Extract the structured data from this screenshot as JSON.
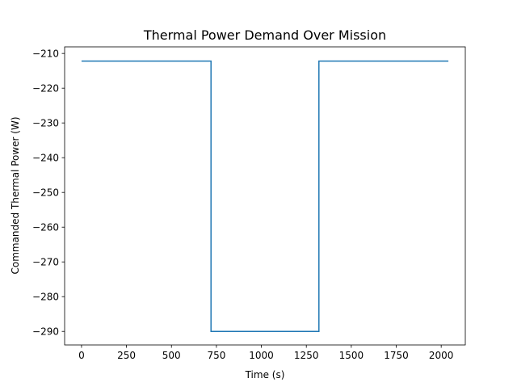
{
  "chart_data": {
    "type": "line",
    "title": "Thermal Power Demand Over Mission",
    "xlabel": "Time (s)",
    "ylabel": "Commanded Thermal Power (W)",
    "xlim": [
      -94,
      2134
    ],
    "ylim": [
      -293.9,
      -208.1
    ],
    "x_ticks": [
      0,
      250,
      500,
      750,
      1000,
      1250,
      1500,
      1750,
      2000
    ],
    "x_tick_labels": [
      "0",
      "250",
      "500",
      "750",
      "1000",
      "1250",
      "1500",
      "1750",
      "2000"
    ],
    "y_ticks": [
      -210,
      -220,
      -230,
      -240,
      -250,
      -260,
      -270,
      -280,
      -290
    ],
    "y_tick_labels": [
      "−210",
      "−220",
      "−230",
      "−240",
      "−250",
      "−260",
      "−270",
      "−280",
      "−290"
    ],
    "grid": false,
    "legend": "none",
    "series": [
      {
        "color": "#1f77b4",
        "x": [
          0,
          720,
          720,
          1320,
          1320,
          2040
        ],
        "y": [
          -212.2,
          -212.2,
          -290,
          -290,
          -212.2,
          -212.2
        ]
      }
    ]
  }
}
